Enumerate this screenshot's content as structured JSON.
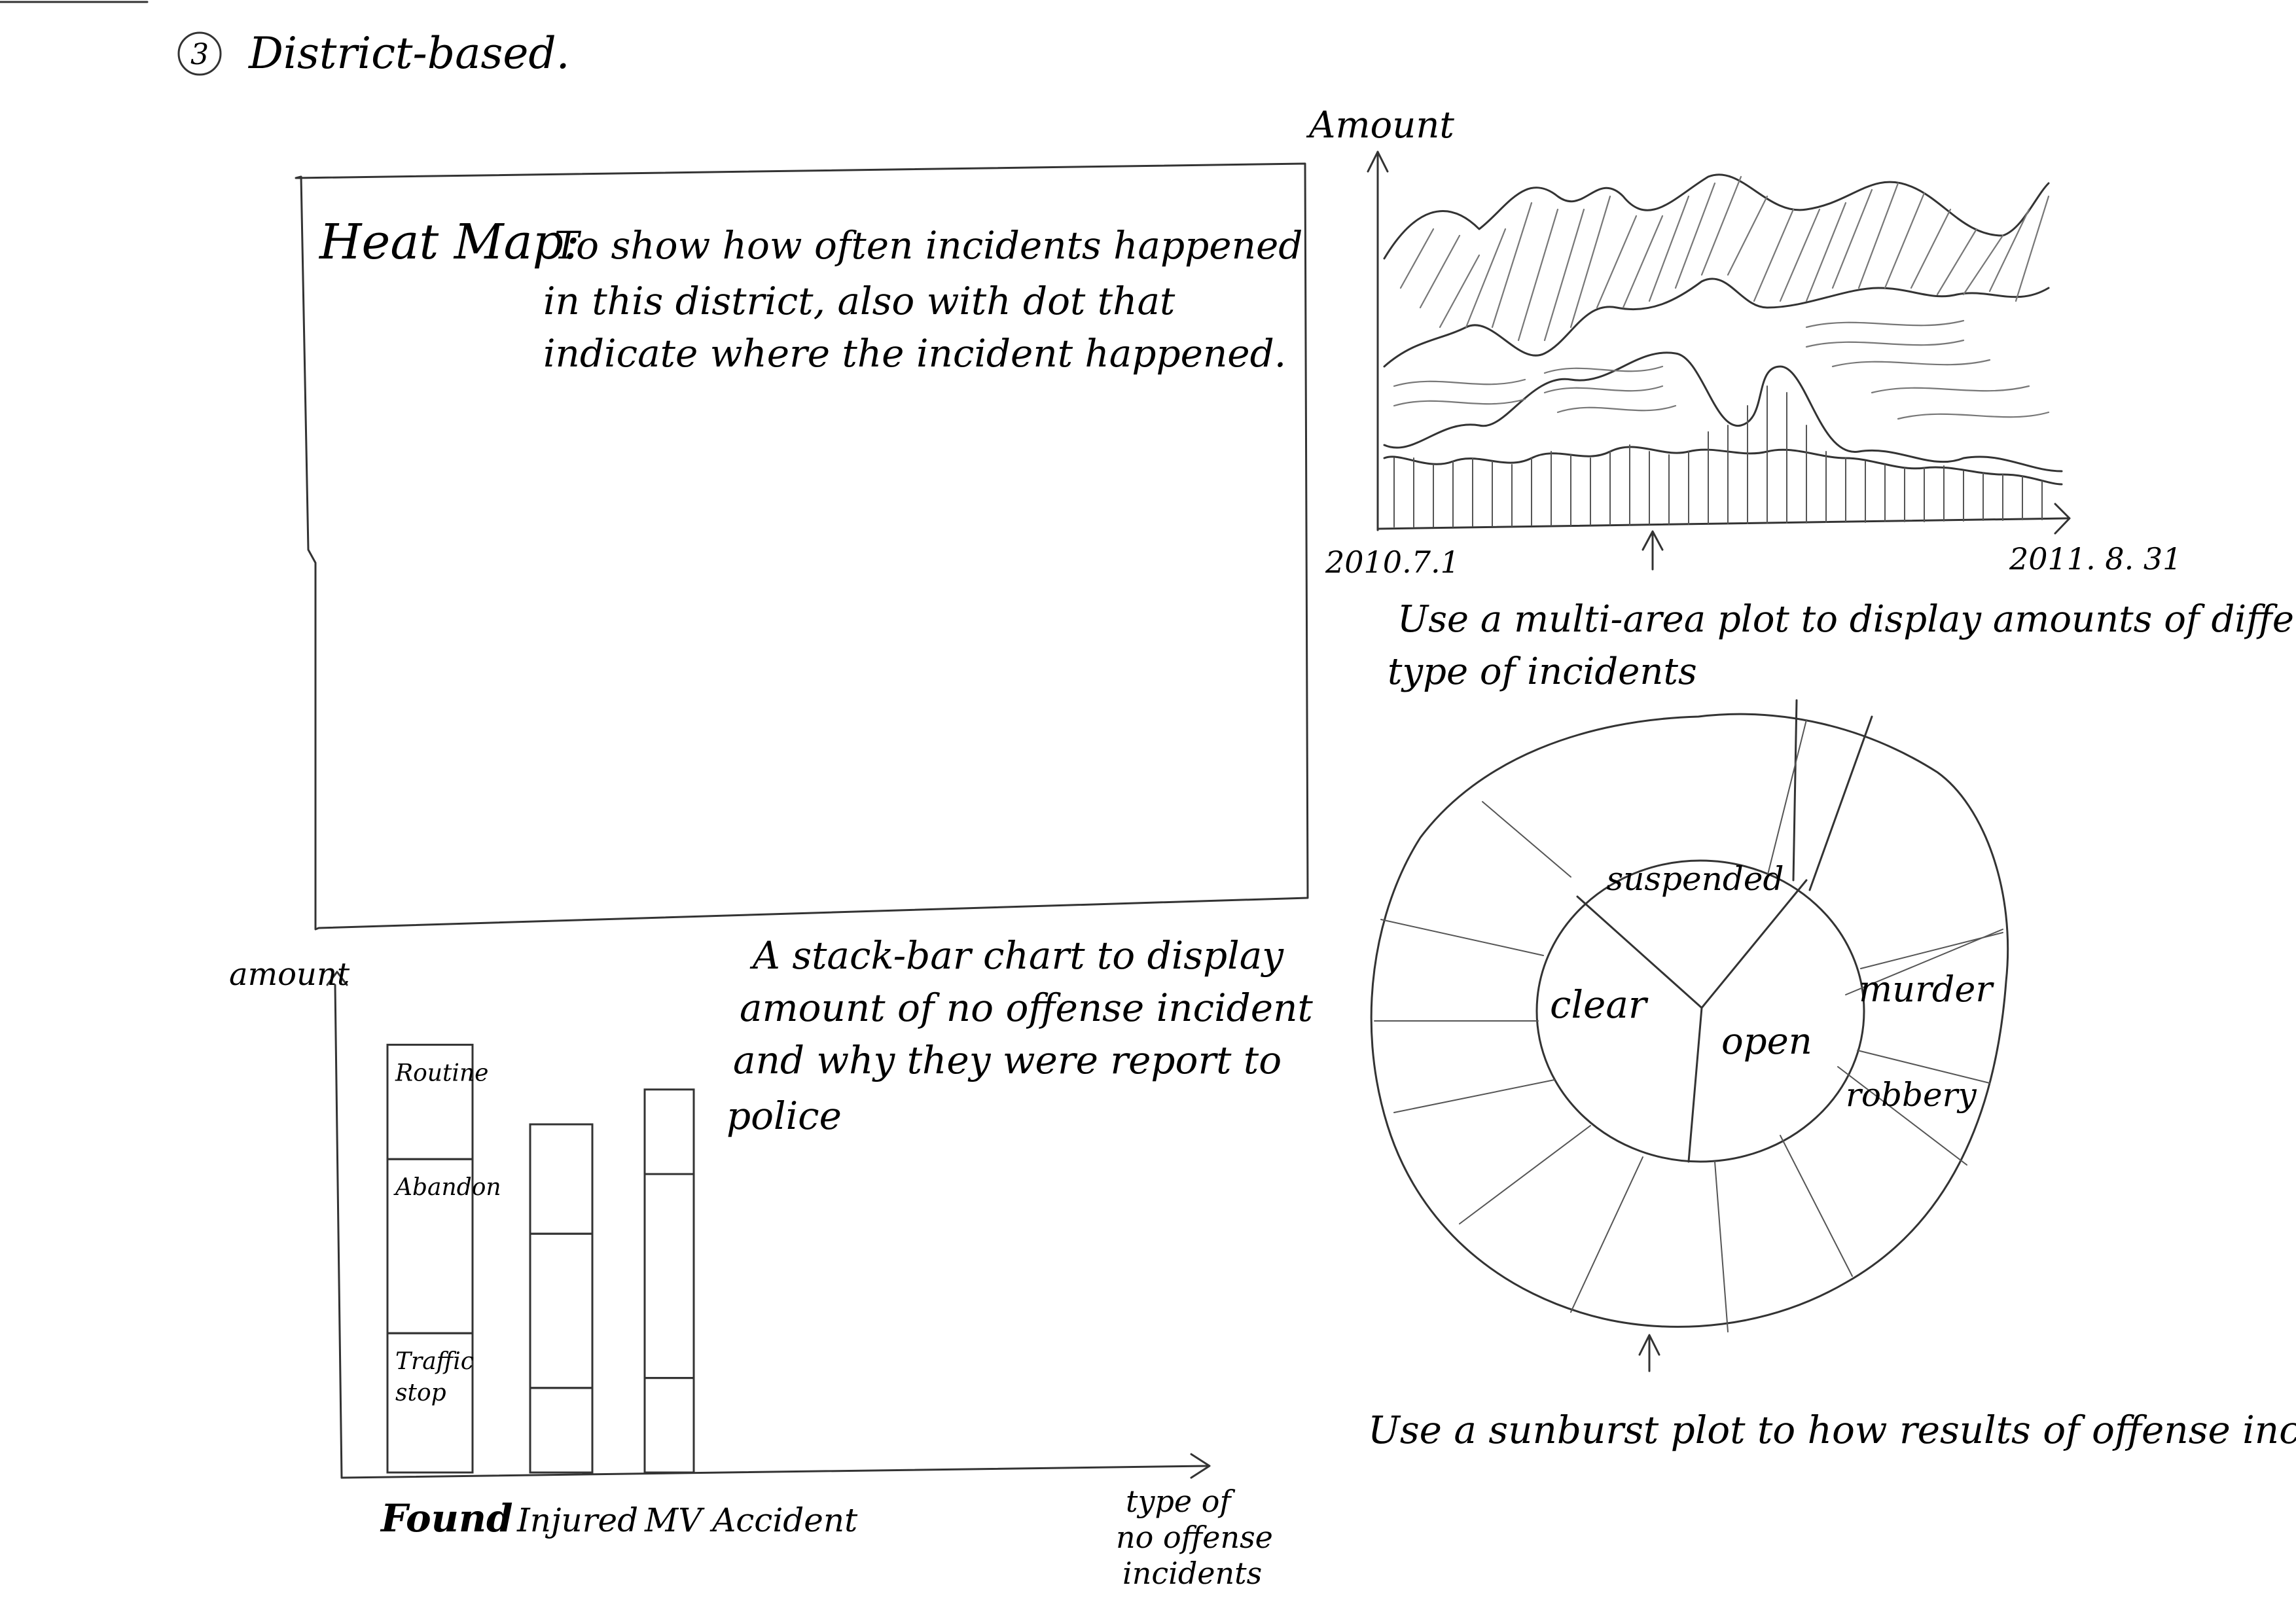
{
  "page": {
    "section_number": "3",
    "section_title": "District-based."
  },
  "heatmap": {
    "label": "Heat Map:",
    "description_lines": [
      "To show how often incidents happened",
      "in this district, also with dot that",
      "indicate where the incident happened."
    ]
  },
  "area_plot": {
    "y_axis_label": "Amount",
    "x_start_label": "2010.7.1",
    "x_end_label": "2011. 8. 31",
    "caption_lines": [
      "Use a multi-area plot to display amounts of different",
      "type of incidents"
    ]
  },
  "sunburst": {
    "inner_labels": [
      "suspended",
      "clear",
      "open"
    ],
    "outer_labels": [
      "murder",
      "robbery"
    ],
    "caption": "Use a sunburst plot to how results of offense incidents"
  },
  "chart_data": {
    "type": "bar",
    "ylabel": "amount",
    "xlabel_lines": [
      "type of",
      "no offense",
      "incidents"
    ],
    "categories": [
      "Found",
      "Injured",
      "MV Accident"
    ],
    "series": [
      {
        "name": "Traffic stop",
        "values": [
          0.28,
          0.17,
          0.19
        ]
      },
      {
        "name": "Abandon",
        "values": [
          0.35,
          0.31,
          0.41
        ]
      },
      {
        "name": "Routine",
        "values": [
          0.23,
          0.22,
          0.17
        ]
      }
    ],
    "segment_labels": [
      [
        "Traffic",
        "stop"
      ],
      [
        "Abandon"
      ],
      [
        "Routine"
      ]
    ],
    "ylim": [
      0,
      1
    ],
    "caption_lines": [
      "A stack-bar chart to display",
      "amount of no offense incident",
      "and why they were report to",
      "police"
    ]
  }
}
